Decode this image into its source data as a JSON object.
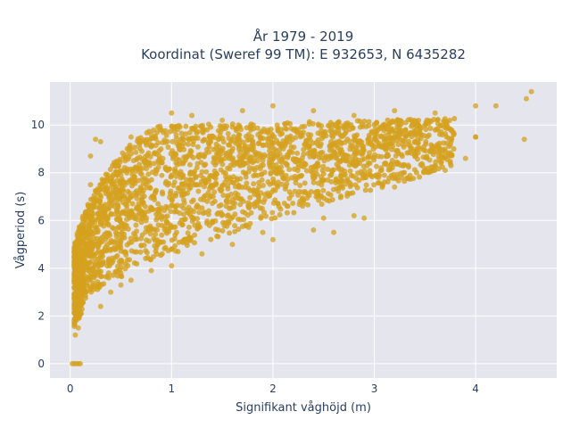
{
  "chart_data": {
    "type": "scatter",
    "title_line1": "År 1979 - 2019",
    "title_line2": "Koordinat (Sweref 99 TM): E 932653, N 6435282",
    "xlabel": "Signifikant våghöjd (m)",
    "ylabel": "Vågperiod (s)",
    "xlim": [
      -0.2,
      4.8
    ],
    "ylim": [
      -0.6,
      11.8
    ],
    "xticks": [
      0,
      1,
      2,
      3,
      4
    ],
    "yticks": [
      0,
      2,
      4,
      6,
      8,
      10
    ],
    "grid": true,
    "legend": "none",
    "marker_color": "#d4a11e",
    "plot_background": "#e5e5ee",
    "series": [
      {
        "points": [
          [
            0.02,
            0
          ],
          [
            0.04,
            0
          ],
          [
            0.06,
            0
          ],
          [
            0.08,
            0
          ],
          [
            0.1,
            0
          ],
          [
            0.05,
            1.2
          ],
          [
            0.08,
            1.5
          ],
          [
            0.1,
            2.2
          ],
          [
            0.1,
            3.5
          ],
          [
            0.12,
            4.6
          ],
          [
            0.15,
            5.6
          ],
          [
            0.18,
            6.6
          ],
          [
            0.2,
            8.7
          ],
          [
            0.25,
            9.4
          ],
          [
            0.3,
            9.3
          ],
          [
            0.2,
            7.5
          ],
          [
            0.3,
            2.4
          ],
          [
            0.4,
            3.0
          ],
          [
            0.5,
            3.3
          ],
          [
            0.6,
            3.5
          ],
          [
            0.8,
            3.9
          ],
          [
            1.0,
            4.1
          ],
          [
            1.3,
            4.6
          ],
          [
            1.6,
            5.0
          ],
          [
            2.0,
            5.2
          ],
          [
            2.4,
            5.6
          ],
          [
            2.8,
            6.2
          ],
          [
            3.2,
            7.4
          ],
          [
            3.6,
            8.3
          ],
          [
            4.0,
            9.5
          ],
          [
            0.3,
            6.5
          ],
          [
            0.5,
            7.9
          ],
          [
            0.6,
            9.5
          ],
          [
            0.8,
            9.6
          ],
          [
            1.0,
            10.5
          ],
          [
            1.2,
            10.4
          ],
          [
            1.5,
            10.2
          ],
          [
            1.7,
            10.6
          ],
          [
            2.0,
            10.8
          ],
          [
            2.4,
            10.6
          ],
          [
            2.8,
            10.4
          ],
          [
            3.2,
            10.6
          ],
          [
            3.6,
            10.5
          ],
          [
            4.0,
            10.8
          ],
          [
            4.2,
            10.8
          ],
          [
            4.5,
            11.1
          ],
          [
            4.55,
            11.4
          ],
          [
            4.48,
            9.4
          ],
          [
            4.0,
            9.5
          ],
          [
            3.9,
            8.6
          ],
          [
            3.7,
            8.1
          ],
          [
            2.6,
            5.5
          ],
          [
            2.5,
            6.1
          ],
          [
            2.9,
            6.1
          ],
          [
            1.9,
            5.5
          ]
        ]
      }
    ]
  }
}
